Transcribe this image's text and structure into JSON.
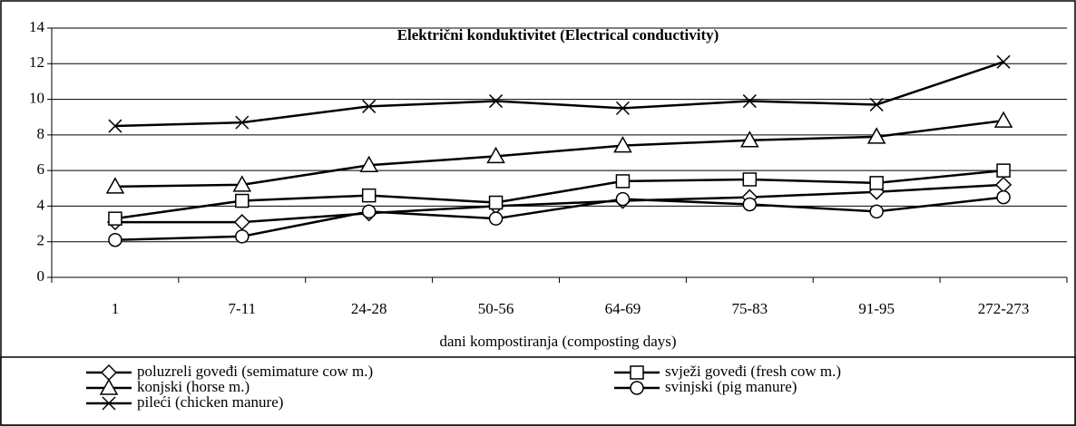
{
  "chart_data": {
    "type": "line",
    "title": "Električni konduktivitet (Electrical conductivity)",
    "x_label": "dani kompostiranja (composting days)",
    "categories": [
      "1",
      "7-11",
      "24-28",
      "50-56",
      "64-69",
      "75-83",
      "91-95",
      "272-273"
    ],
    "ylim": [
      0,
      14
    ],
    "yticks": [
      0,
      2,
      4,
      6,
      8,
      10,
      12,
      14
    ],
    "grid": true,
    "series": [
      {
        "name": "poluzreli goveđi (semimature cow m.)",
        "color": "#000000",
        "marker": "diamond",
        "values": [
          3.1,
          3.1,
          3.6,
          4.0,
          4.3,
          4.5,
          4.8,
          5.2
        ]
      },
      {
        "name": "svježi goveđi (fresh cow m.)",
        "color": "#000000",
        "marker": "square",
        "values": [
          3.3,
          4.3,
          4.6,
          4.2,
          5.4,
          5.5,
          5.3,
          6.0
        ]
      },
      {
        "name": "konjski (horse m.)",
        "color": "#000000",
        "marker": "triangle",
        "values": [
          5.1,
          5.2,
          6.3,
          6.8,
          7.4,
          7.7,
          7.9,
          8.8
        ]
      },
      {
        "name": "svinjski (pig manure)",
        "color": "#000000",
        "marker": "circle",
        "values": [
          2.1,
          2.3,
          3.7,
          3.3,
          4.4,
          4.1,
          3.7,
          4.5
        ]
      },
      {
        "name": "pileći (chicken manure)",
        "color": "#000000",
        "marker": "x",
        "values": [
          8.5,
          8.7,
          9.6,
          9.9,
          9.5,
          9.9,
          9.7,
          12.1
        ]
      }
    ]
  }
}
